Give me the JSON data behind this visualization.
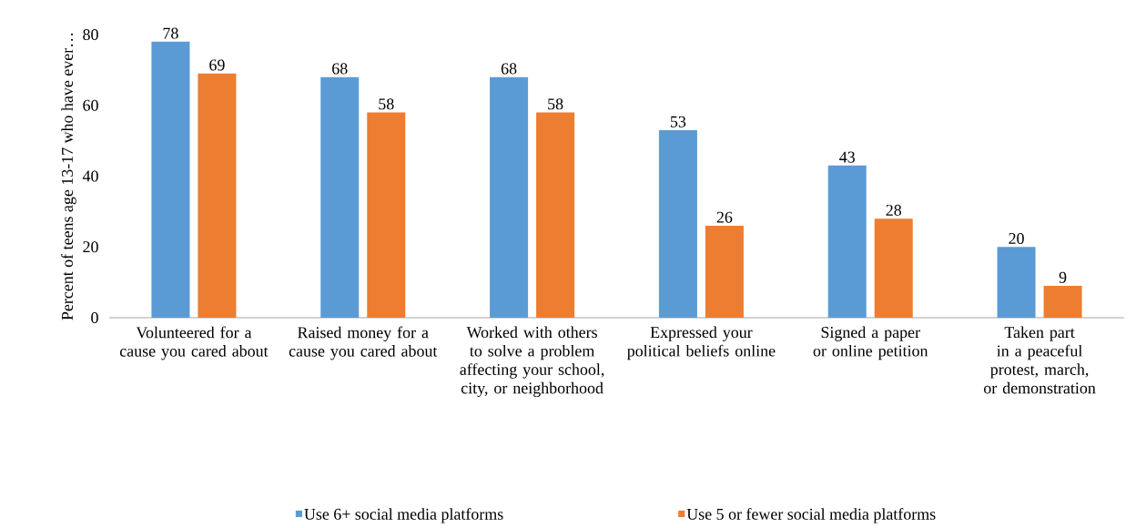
{
  "chart_data": {
    "type": "bar",
    "ylabel": "Percent of teens age 13-17 who have ever…",
    "categories": [
      "Volunteered for a cause you cared about",
      "Raised money for a cause you cared about",
      "Worked with others to solve a problem affecting your school, city, or neighborhood",
      "Expressed your political beliefs online",
      "Signed a paper or online petition",
      "Taken part in a peaceful protest, march, or demonstration"
    ],
    "series": [
      {
        "name": "Use 6+ social media platforms",
        "color": "#5b9bd5",
        "values": [
          78,
          68,
          68,
          53,
          43,
          20
        ]
      },
      {
        "name": "Use 5 or fewer social media platforms",
        "color": "#ed7d31",
        "values": [
          69,
          58,
          58,
          26,
          28,
          9
        ]
      }
    ],
    "ylim": [
      0,
      80
    ],
    "yticks": [
      0,
      20,
      40,
      60,
      80
    ],
    "data_labels": true,
    "grid": false,
    "legend": "bottom"
  }
}
